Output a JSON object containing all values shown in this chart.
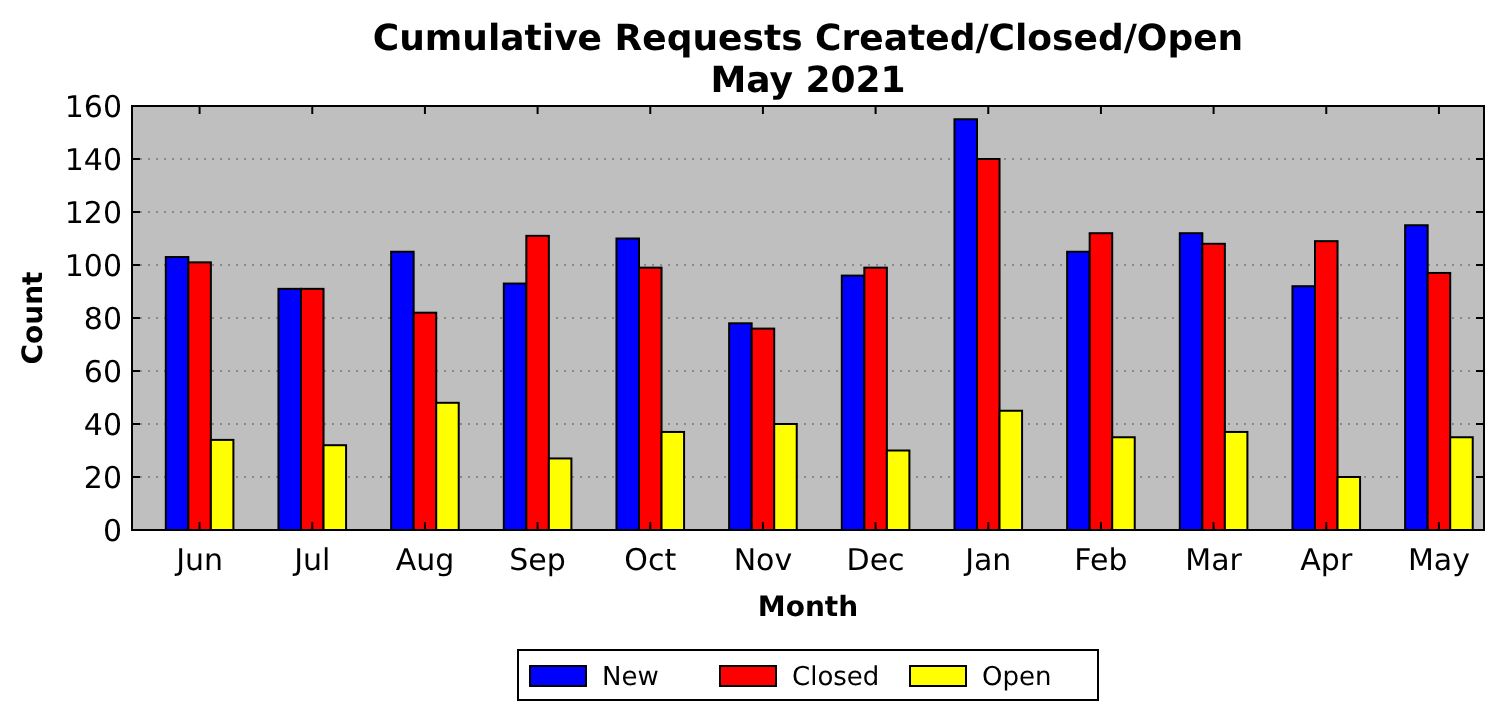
{
  "chart_data": {
    "type": "bar",
    "title": "Cumulative Requests Created/Closed/Open\nMay 2021",
    "xlabel": "Month",
    "ylabel": "Count",
    "categories": [
      "Jun",
      "Jul",
      "Aug",
      "Sep",
      "Oct",
      "Nov",
      "Dec",
      "Jan",
      "Feb",
      "Mar",
      "Apr",
      "May"
    ],
    "series": [
      {
        "name": "New",
        "color": "#0000ff",
        "values": [
          103,
          91,
          105,
          93,
          110,
          78,
          96,
          155,
          105,
          112,
          92,
          115
        ]
      },
      {
        "name": "Closed",
        "color": "#ff0000",
        "values": [
          101,
          91,
          82,
          111,
          99,
          76,
          99,
          140,
          112,
          108,
          109,
          97
        ]
      },
      {
        "name": "Open",
        "color": "#ffff00",
        "values": [
          34,
          32,
          48,
          27,
          37,
          40,
          30,
          45,
          35,
          37,
          20,
          35
        ]
      }
    ],
    "ylim": [
      0,
      160
    ],
    "yticks": [
      0,
      20,
      40,
      60,
      80,
      100,
      120,
      140,
      160
    ],
    "grid": "y",
    "legend": "bottom"
  }
}
